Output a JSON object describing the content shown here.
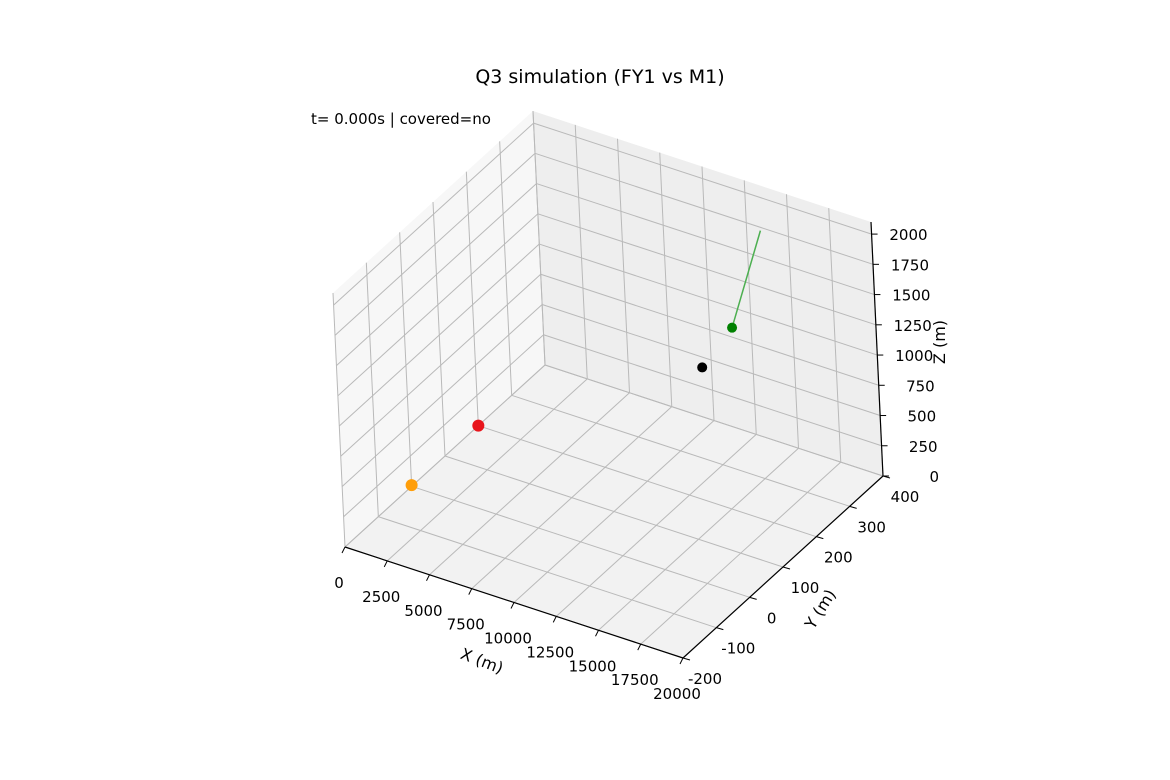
{
  "chart_data": {
    "type": "scatter",
    "projection": "3d",
    "title": "Q3 simulation (FY1 vs M1)",
    "status_text": "t= 0.000s | covered=no",
    "xlabel": "X (m)",
    "ylabel": "Y (m)",
    "zlabel": "Z (m)",
    "xlim": [
      0,
      20000
    ],
    "ylim": [
      -200,
      400
    ],
    "zlim": [
      0,
      2100
    ],
    "x_ticks": [
      "0",
      "2500",
      "5000",
      "7500",
      "10000",
      "12500",
      "15000",
      "17500",
      "20000"
    ],
    "y_ticks": [
      "-200",
      "-100",
      "0",
      "100",
      "200",
      "300",
      "400"
    ],
    "z_ticks": [
      "0",
      "250",
      "500",
      "750",
      "1000",
      "1250",
      "1500",
      "1750",
      "2000"
    ],
    "grid": true,
    "points": [
      {
        "color": "#e8141b",
        "values": {
          "x": 0,
          "y": 200,
          "z": 0
        }
      },
      {
        "color": "#ff9e0a",
        "values": {
          "x": 0,
          "y": 0,
          "z": 10
        }
      },
      {
        "color": "#000000",
        "values": {
          "x": 17800,
          "y": 0,
          "z": 1800
        }
      },
      {
        "color": "#008000",
        "values": {
          "x": 17200,
          "y": 120,
          "z": 1800
        }
      }
    ],
    "trail": {
      "color": "#4caf50",
      "from": {
        "x": 15000,
        "y": 320,
        "z": 2000
      },
      "to": {
        "x": 17200,
        "y": 120,
        "z": 1800
      }
    }
  }
}
